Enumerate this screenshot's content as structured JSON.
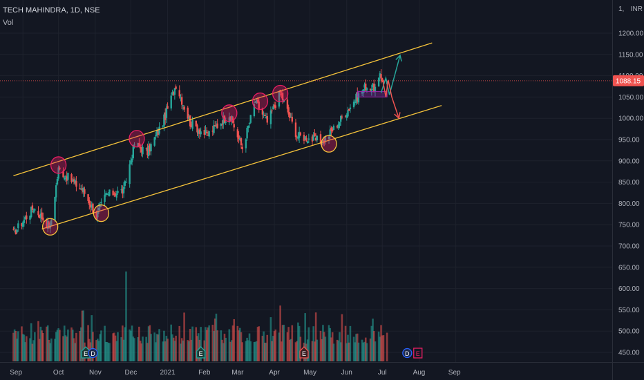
{
  "header": {
    "symbol": "TECH MAHINDRA, 1D, NSE",
    "volume_label": "Vol",
    "currency": "INR"
  },
  "colors": {
    "up": "#26a69a",
    "down": "#ef5350",
    "channel": "#f5c33b",
    "grid": "#1e222d",
    "bg": "#131722",
    "marker_red": "#e91e63",
    "marker_yellow": "#f5c33b",
    "arrow_up": "#26a69a",
    "arrow_down": "#ef5350"
  },
  "chart_data": {
    "type": "candlestick",
    "title": "TECH MAHINDRA, 1D, NSE",
    "y_axis": {
      "ticks": [
        450,
        500,
        550,
        600,
        650,
        700,
        750,
        800,
        850,
        900,
        950,
        1000,
        1050,
        1100,
        1150,
        1200
      ],
      "ylim": [
        437,
        1260
      ],
      "top_label": "1,"
    },
    "x_axis": {
      "ticks": [
        "Sep",
        "Oct",
        "Nov",
        "Dec",
        "2021",
        "Feb",
        "Mar",
        "Apr",
        "May",
        "Jun",
        "Jul",
        "Aug",
        "Sep"
      ]
    },
    "last_price": {
      "value": 1088.15,
      "label": "1088.15"
    },
    "grid": true,
    "anchors": [
      [
        "2020-08-24",
        730
      ],
      [
        "2020-09-10",
        790
      ],
      [
        "2020-09-24",
        745
      ],
      [
        "2020-10-01",
        880
      ],
      [
        "2020-10-22",
        830
      ],
      [
        "2020-11-02",
        770
      ],
      [
        "2020-11-10",
        820
      ],
      [
        "2020-11-25",
        830
      ],
      [
        "2020-12-04",
        940
      ],
      [
        "2020-12-15",
        920
      ],
      [
        "2020-12-28",
        990
      ],
      [
        "2021-01-08",
        1080
      ],
      [
        "2021-01-20",
        990
      ],
      [
        "2021-02-03",
        960
      ],
      [
        "2021-02-22",
        1010
      ],
      [
        "2021-03-05",
        930
      ],
      [
        "2021-03-16",
        1040
      ],
      [
        "2021-03-26",
        990
      ],
      [
        "2021-04-06",
        1060
      ],
      [
        "2021-04-20",
        960
      ],
      [
        "2021-05-04",
        950
      ],
      [
        "2021-05-12",
        945
      ],
      [
        "2021-05-25",
        990
      ],
      [
        "2021-06-07",
        1040
      ],
      [
        "2021-06-17",
        1075
      ],
      [
        "2021-06-25",
        1070
      ],
      [
        "2021-06-29",
        1095
      ],
      [
        "2021-07-05",
        1088
      ]
    ],
    "volume_spikes": [
      [
        "2020-11-27",
        640
      ],
      [
        "2021-04-06",
        560
      ]
    ],
    "channel": {
      "upper": {
        "from": [
          "2020-08-24",
          865
        ],
        "to": [
          "2021-08-12",
          1177
        ]
      },
      "lower": {
        "from": [
          "2020-09-17",
          740
        ],
        "to": [
          "2021-08-20",
          1030
        ]
      }
    },
    "resistance_level": 1088.15,
    "consolidation_box": {
      "from": "2021-06-10",
      "to": "2021-07-05",
      "low": 1050,
      "high": 1063
    },
    "projections": {
      "bullish": [
        [
          "2021-06-30",
          1060
        ],
        [
          "2021-07-04",
          1095
        ],
        [
          "2021-07-07",
          1055
        ],
        [
          "2021-07-16",
          1148
        ]
      ],
      "bearish": [
        [
          "2021-07-01",
          1095
        ],
        [
          "2021-07-04",
          1050
        ],
        [
          "2021-07-06",
          1090
        ],
        [
          "2021-07-09",
          1050
        ],
        [
          "2021-07-15",
          1000
        ]
      ]
    },
    "markers": [
      {
        "date": "2020-09-24",
        "price": 745,
        "kind": "support"
      },
      {
        "date": "2020-10-01",
        "price": 890,
        "kind": "resistance"
      },
      {
        "date": "2020-11-06",
        "price": 777,
        "kind": "support"
      },
      {
        "date": "2020-12-06",
        "price": 952,
        "kind": "resistance"
      },
      {
        "date": "2021-02-22",
        "price": 1012,
        "kind": "resistance"
      },
      {
        "date": "2021-03-20",
        "price": 1040,
        "kind": "resistance"
      },
      {
        "date": "2021-04-06",
        "price": 1058,
        "kind": "resistance"
      },
      {
        "date": "2021-05-17",
        "price": 940,
        "kind": "support"
      }
    ],
    "events": [
      {
        "date": "2020-10-24",
        "label": "E",
        "style": "earnings-green"
      },
      {
        "date": "2020-10-30",
        "label": "D",
        "style": "dividend-blue"
      },
      {
        "date": "2021-01-29",
        "label": "E",
        "style": "earnings-green"
      },
      {
        "date": "2021-04-26",
        "label": "E",
        "style": "earnings-red"
      },
      {
        "date": "2021-07-22",
        "label": "D",
        "style": "dividend-blue"
      },
      {
        "date": "2021-07-31",
        "label": "E",
        "style": "earnings-pink"
      }
    ]
  }
}
